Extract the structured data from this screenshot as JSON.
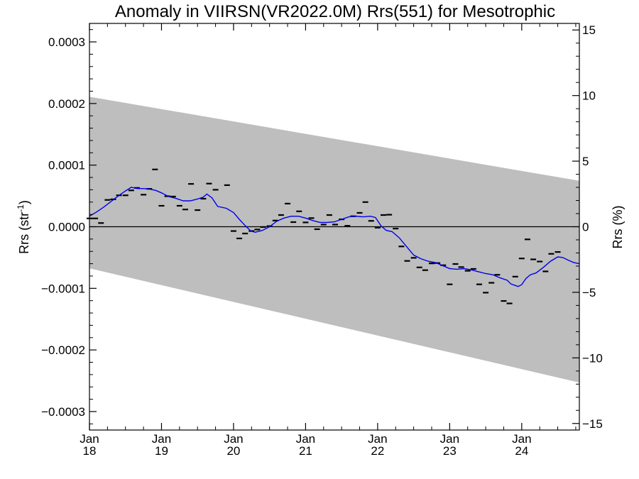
{
  "chart_data": {
    "type": "scatter",
    "title": "Anomaly in VIIRSN(VR2022.0M) Rrs(551) for Mesotrophic",
    "ylabel_left": {
      "text": "Rrs (str",
      "sup": "-1",
      "close": ")"
    },
    "ylabel_right": "Rrs (%)",
    "x_unit": "year",
    "xlim": [
      2018.0,
      2024.8
    ],
    "ylim": [
      -0.00033,
      0.00033
    ],
    "ylim_right": [
      -15.5,
      15.5
    ],
    "x_ticks": [
      {
        "value": 2018,
        "month": "Jan",
        "year": "18"
      },
      {
        "value": 2019,
        "month": "Jan",
        "year": "19"
      },
      {
        "value": 2020,
        "month": "Jan",
        "year": "20"
      },
      {
        "value": 2021,
        "month": "Jan",
        "year": "21"
      },
      {
        "value": 2022,
        "month": "Jan",
        "year": "22"
      },
      {
        "value": 2023,
        "month": "Jan",
        "year": "23"
      },
      {
        "value": 2024,
        "month": "Jan",
        "year": "24"
      }
    ],
    "y_ticks_left": [
      {
        "value": 0.0003,
        "label": "0.0003"
      },
      {
        "value": 0.0002,
        "label": "0.0002"
      },
      {
        "value": 0.0001,
        "label": "0.0001"
      },
      {
        "value": 0.0,
        "label": "0.0000"
      },
      {
        "value": -0.0001,
        "label": "−0.0001"
      },
      {
        "value": -0.0002,
        "label": "−0.0002"
      },
      {
        "value": -0.0003,
        "label": "−0.0003"
      }
    ],
    "y_ticks_right": [
      {
        "value": 15,
        "label": "15"
      },
      {
        "value": 10,
        "label": "10"
      },
      {
        "value": 5,
        "label": "5"
      },
      {
        "value": 0,
        "label": "0"
      },
      {
        "value": -5,
        "label": "−5"
      },
      {
        "value": -10,
        "label": "−10"
      },
      {
        "value": -15,
        "label": "−15"
      }
    ],
    "band": {
      "color": "#bebebe",
      "upper": [
        [
          2018.0,
          0.000211
        ],
        [
          2024.8,
          7.45e-05
        ]
      ],
      "lower": [
        [
          2018.0,
          -6.75e-05
        ],
        [
          2024.8,
          -0.000253
        ]
      ]
    },
    "zero_line": {
      "y": 0,
      "color": "#000000"
    },
    "monthly_anomalies": {
      "color": "#000000",
      "points": [
        [
          2018.0,
          1.35e-05
        ],
        [
          2018.08,
          1.35e-05
        ],
        [
          2018.16,
          6e-06
        ],
        [
          2018.25,
          4.35e-05
        ],
        [
          2018.33,
          4.45e-05
        ],
        [
          2018.41,
          5.1e-05
        ],
        [
          2018.5,
          5.1e-05
        ],
        [
          2018.58,
          5.9e-05
        ],
        [
          2018.66,
          6.3e-05
        ],
        [
          2018.75,
          5.2e-05
        ],
        [
          2018.83,
          6.15e-05
        ],
        [
          2018.91,
          9.3e-05
        ],
        [
          2019.0,
          3.4e-05
        ],
        [
          2019.08,
          4.95e-05
        ],
        [
          2019.16,
          4.9e-05
        ],
        [
          2019.25,
          3.4e-05
        ],
        [
          2019.33,
          2.8e-05
        ],
        [
          2019.41,
          6.95e-05
        ],
        [
          2019.5,
          2.7e-05
        ],
        [
          2019.58,
          4.55e-05
        ],
        [
          2019.66,
          7e-05
        ],
        [
          2019.75,
          6e-05
        ],
        [
          2019.91,
          6.75e-05
        ],
        [
          2020.0,
          -7e-06
        ],
        [
          2020.08,
          -1.9e-05
        ],
        [
          2020.16,
          -1.1e-05
        ],
        [
          2020.25,
          -7e-06
        ],
        [
          2020.33,
          -4.5e-06
        ],
        [
          2020.41,
          -5e-07
        ],
        [
          2020.5,
          1e-06
        ],
        [
          2020.58,
          1e-05
        ],
        [
          2020.66,
          1.9e-05
        ],
        [
          2020.75,
          3.75e-05
        ],
        [
          2020.83,
          7.5e-06
        ],
        [
          2020.91,
          2.5e-05
        ],
        [
          2021.0,
          7e-06
        ],
        [
          2021.08,
          1.4e-05
        ],
        [
          2021.16,
          -4e-06
        ],
        [
          2021.25,
          3.5e-06
        ],
        [
          2021.33,
          1.9e-05
        ],
        [
          2021.41,
          3.5e-06
        ],
        [
          2021.5,
          1.2e-05
        ],
        [
          2021.58,
          1.5e-06
        ],
        [
          2021.66,
          1.7e-05
        ],
        [
          2021.75,
          2.25e-05
        ],
        [
          2021.83,
          4e-05
        ],
        [
          2021.91,
          9.5e-06
        ],
        [
          2022.0,
          -1.5e-06
        ],
        [
          2022.08,
          1.9e-05
        ],
        [
          2022.16,
          1.95e-05
        ],
        [
          2022.25,
          -3e-06
        ],
        [
          2022.33,
          -3.2e-05
        ],
        [
          2022.41,
          -5.55e-05
        ],
        [
          2022.5,
          -5.05e-05
        ],
        [
          2022.58,
          -6.6e-05
        ],
        [
          2022.66,
          -7.05e-05
        ],
        [
          2022.75,
          -5.95e-05
        ],
        [
          2022.83,
          -5.9e-05
        ],
        [
          2022.91,
          -6.25e-05
        ],
        [
          2023.0,
          -9.35e-05
        ],
        [
          2023.08,
          -6.05e-05
        ],
        [
          2023.16,
          -6.55e-05
        ],
        [
          2023.25,
          -7.15e-05
        ],
        [
          2023.33,
          -6.85e-05
        ],
        [
          2023.41,
          -9.35e-05
        ],
        [
          2023.5,
          -0.000107
        ],
        [
          2023.58,
          -9.1e-05
        ],
        [
          2023.66,
          -7.8e-05
        ],
        [
          2023.75,
          -0.0001205
        ],
        [
          2023.83,
          -0.0001245
        ],
        [
          2023.91,
          -8.1e-05
        ],
        [
          2024.0,
          -5.15e-05
        ],
        [
          2024.08,
          -2.05e-05
        ],
        [
          2024.16,
          -5.3e-05
        ],
        [
          2024.25,
          -5.65e-05
        ],
        [
          2024.33,
          -7.25e-05
        ],
        [
          2024.41,
          -4.4e-05
        ],
        [
          2024.5,
          -4.1e-05
        ]
      ]
    },
    "running_mean": {
      "color": "#0000ee",
      "points": [
        [
          2018.0,
          1.7e-05
        ],
        [
          2018.1,
          2.4e-05
        ],
        [
          2018.2,
          3.2e-05
        ],
        [
          2018.3,
          4.1e-05
        ],
        [
          2018.4,
          5e-05
        ],
        [
          2018.5,
          5.8e-05
        ],
        [
          2018.58,
          6.4e-05
        ],
        [
          2018.66,
          6.2e-05
        ],
        [
          2018.75,
          6.2e-05
        ],
        [
          2018.83,
          6.1e-05
        ],
        [
          2018.92,
          5.9e-05
        ],
        [
          2019.0,
          5.5e-05
        ],
        [
          2019.1,
          4.9e-05
        ],
        [
          2019.2,
          4.6e-05
        ],
        [
          2019.3,
          4.2e-05
        ],
        [
          2019.4,
          4.2e-05
        ],
        [
          2019.5,
          4.5e-05
        ],
        [
          2019.58,
          4.8e-05
        ],
        [
          2019.63,
          5.3e-05
        ],
        [
          2019.7,
          4.7e-05
        ],
        [
          2019.78,
          3.3e-05
        ],
        [
          2019.9,
          3e-05
        ],
        [
          2020.0,
          2.3e-05
        ],
        [
          2020.08,
          1.2e-05
        ],
        [
          2020.16,
          2e-06
        ],
        [
          2020.24,
          -7e-06
        ],
        [
          2020.3,
          -9e-06
        ],
        [
          2020.4,
          -6e-06
        ],
        [
          2020.5,
          0.0
        ],
        [
          2020.6,
          9e-06
        ],
        [
          2020.7,
          1.4e-05
        ],
        [
          2020.8,
          1.7e-05
        ],
        [
          2020.9,
          1.7e-05
        ],
        [
          2021.0,
          1.4e-05
        ],
        [
          2021.1,
          1e-05
        ],
        [
          2021.2,
          7e-06
        ],
        [
          2021.3,
          7e-06
        ],
        [
          2021.4,
          8e-06
        ],
        [
          2021.5,
          1.2e-05
        ],
        [
          2021.6,
          1.6e-05
        ],
        [
          2021.7,
          1.7e-05
        ],
        [
          2021.8,
          1.6e-05
        ],
        [
          2021.9,
          1.7e-05
        ],
        [
          2021.97,
          1.5e-05
        ],
        [
          2022.05,
          1e-06
        ],
        [
          2022.12,
          -6e-06
        ],
        [
          2022.2,
          -8e-06
        ],
        [
          2022.3,
          -1.8e-05
        ],
        [
          2022.4,
          -3.2e-05
        ],
        [
          2022.5,
          -4.6e-05
        ],
        [
          2022.6,
          -5.2e-05
        ],
        [
          2022.7,
          -5.6e-05
        ],
        [
          2022.8,
          -5.8e-05
        ],
        [
          2022.9,
          -6.3e-05
        ],
        [
          2023.0,
          -6.8e-05
        ],
        [
          2023.1,
          -6.9e-05
        ],
        [
          2023.2,
          -6.8e-05
        ],
        [
          2023.3,
          -7e-05
        ],
        [
          2023.4,
          -7.3e-05
        ],
        [
          2023.5,
          -7.6e-05
        ],
        [
          2023.6,
          -7.8e-05
        ],
        [
          2023.7,
          -8.3e-05
        ],
        [
          2023.8,
          -8.7e-05
        ],
        [
          2023.85,
          -9.3e-05
        ],
        [
          2023.95,
          -9.7e-05
        ],
        [
          2024.0,
          -9.4e-05
        ],
        [
          2024.06,
          -8.4e-05
        ],
        [
          2024.12,
          -7.8e-05
        ],
        [
          2024.2,
          -7.5e-05
        ],
        [
          2024.3,
          -6.6e-05
        ],
        [
          2024.4,
          -5.6e-05
        ],
        [
          2024.5,
          -4.9e-05
        ],
        [
          2024.57,
          -5e-05
        ],
        [
          2024.64,
          -5.4e-05
        ],
        [
          2024.72,
          -5.8e-05
        ],
        [
          2024.8,
          -6e-05
        ]
      ]
    },
    "grid": false,
    "legend": "none"
  }
}
